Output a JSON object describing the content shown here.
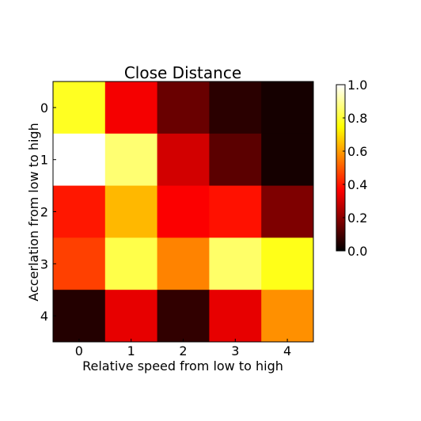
{
  "chart_data": {
    "type": "heatmap",
    "title": "Close Distance",
    "xlabel": "Relative speed from low to high",
    "ylabel": "Accerlation from low to high",
    "x_categories": [
      "0",
      "1",
      "2",
      "3",
      "4"
    ],
    "y_categories": [
      "0",
      "1",
      "2",
      "3",
      "4"
    ],
    "values": [
      [
        0.78,
        0.35,
        0.15,
        0.06,
        0.03
      ],
      [
        1.0,
        0.86,
        0.3,
        0.13,
        0.03
      ],
      [
        0.4,
        0.64,
        0.36,
        0.39,
        0.18
      ],
      [
        0.46,
        0.82,
        0.56,
        0.85,
        0.77
      ],
      [
        0.05,
        0.33,
        0.07,
        0.33,
        0.58
      ]
    ],
    "colormap": "hot",
    "colorbar": {
      "range": [
        0.0,
        1.0
      ],
      "ticks": [
        "0.0",
        "0.2",
        "0.4",
        "0.6",
        "0.8",
        "1.0"
      ]
    },
    "grid": false
  }
}
